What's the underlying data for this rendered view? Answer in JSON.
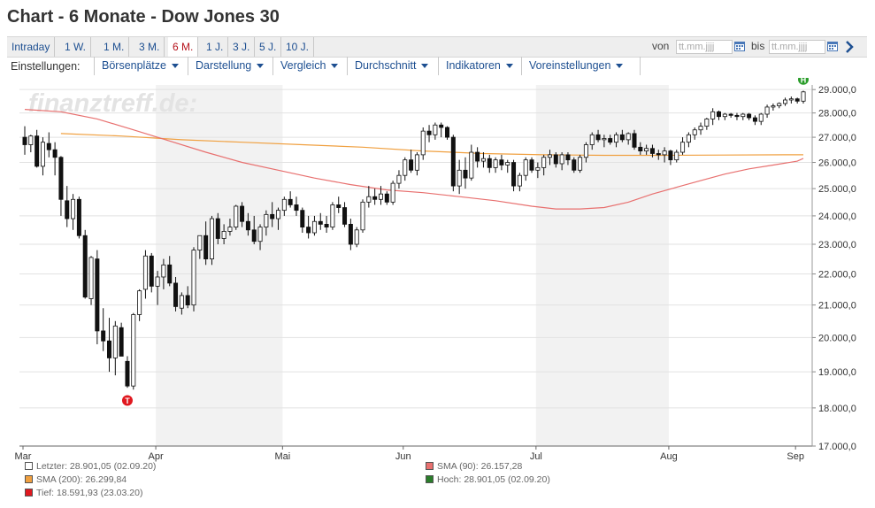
{
  "header": {
    "title": "Chart - 6 Monate - Dow Jones 30"
  },
  "range_tabs": [
    {
      "label": "Intraday",
      "active": false
    },
    {
      "label": "1 W.",
      "active": false
    },
    {
      "label": "1 M.",
      "active": false
    },
    {
      "label": "3 M.",
      "active": false
    },
    {
      "label": "6 M.",
      "active": true
    },
    {
      "label": "1 J.",
      "active": false
    },
    {
      "label": "3 J.",
      "active": false
    },
    {
      "label": "5 J.",
      "active": false
    },
    {
      "label": "10 J.",
      "active": false
    }
  ],
  "date_range": {
    "from_label": "von",
    "from_placeholder": "tt.mm.jjjj",
    "to_label": "bis",
    "to_placeholder": "tt.mm.jjjj"
  },
  "settings": {
    "label": "Einstellungen:",
    "menus": [
      "Börsenplätze",
      "Darstellung",
      "Vergleich",
      "Durchschnitt",
      "Indikatoren",
      "Voreinstellungen"
    ]
  },
  "watermark": "finanztreff.de:",
  "colors": {
    "sma90": "#e8706f",
    "sma200": "#f0a040",
    "up_candle": "#ffffff",
    "down_candle": "#111111",
    "low_marker": "#e0181f",
    "high_marker": "#2a9d2a",
    "shaded_month": "#f2f2f2"
  },
  "legend": [
    {
      "text": "Letzter: 28.901,05 (02.09.20)",
      "color": "#ffffff"
    },
    {
      "text": "SMA (90): 26.157,28",
      "color": "#e8706f"
    },
    {
      "text": "SMA (200): 26.299,84",
      "color": "#f0a040"
    },
    {
      "text": "Hoch: 28.901,05 (02.09.20)",
      "color": "#2a7d2a"
    },
    {
      "text": "Tief: 18.591,93 (23.03.20)",
      "color": "#e0181f"
    }
  ],
  "markers": {
    "low_label": "T",
    "high_label": "H"
  },
  "chart_data": {
    "type": "candlestick",
    "x_unit": "Handelstage (März–September 2020)",
    "month_labels": [
      {
        "label": "Mar",
        "day": 0
      },
      {
        "label": "Apr",
        "day": 22
      },
      {
        "label": "Mai",
        "day": 43
      },
      {
        "label": "Jun",
        "day": 63
      },
      {
        "label": "Jul",
        "day": 85
      },
      {
        "label": "Aug",
        "day": 107
      },
      {
        "label": "Sep",
        "day": 128
      }
    ],
    "shaded_months": [
      [
        22,
        43
      ],
      [
        85,
        107
      ]
    ],
    "yticks": [
      17000,
      18000,
      19000,
      20000,
      21000,
      22000,
      23000,
      24000,
      25000,
      26000,
      27000,
      28000,
      29000
    ],
    "ytick_labels": [
      "17.000,0",
      "18.000,0",
      "19.000,0",
      "20.000,0",
      "21.000,0",
      "22.000,0",
      "23.000,0",
      "24.000,0",
      "25.000,0",
      "26.000,0",
      "27.000,0",
      "28.000,0",
      "29.000,0"
    ],
    "ylim": [
      17000,
      29200
    ],
    "log_scale": true,
    "grid": true,
    "ohlc": [
      [
        27000,
        27450,
        26300,
        26700
      ],
      [
        26700,
        27100,
        26400,
        27050
      ],
      [
        27050,
        27300,
        25800,
        25850
      ],
      [
        25850,
        27000,
        25500,
        26800
      ],
      [
        26750,
        27200,
        26200,
        26500
      ],
      [
        26500,
        26800,
        25500,
        26200
      ],
      [
        26200,
        26250,
        24000,
        24600
      ],
      [
        24550,
        25100,
        23600,
        23900
      ],
      [
        23900,
        24800,
        23500,
        24600
      ],
      [
        24600,
        24700,
        23200,
        23300
      ],
      [
        23300,
        23500,
        21200,
        21250
      ],
      [
        21200,
        22600,
        21000,
        22550
      ],
      [
        22500,
        22800,
        19800,
        20200
      ],
      [
        20200,
        20900,
        19600,
        19900
      ],
      [
        19900,
        20600,
        19000,
        19400
      ],
      [
        19400,
        20500,
        18900,
        20350
      ],
      [
        20300,
        20450,
        19500,
        19450
      ],
      [
        19300,
        19450,
        18550,
        18600
      ],
      [
        18600,
        20750,
        18500,
        20700
      ],
      [
        20700,
        21500,
        20500,
        21450
      ],
      [
        21500,
        22800,
        21200,
        22600
      ],
      [
        22600,
        22700,
        21400,
        21600
      ],
      [
        21600,
        22100,
        21000,
        21900
      ],
      [
        21900,
        22500,
        21500,
        22300
      ],
      [
        22300,
        22600,
        21600,
        21700
      ],
      [
        21700,
        21900,
        20800,
        20950
      ],
      [
        20900,
        21400,
        20700,
        21300
      ],
      [
        21300,
        21600,
        20900,
        21000
      ],
      [
        21000,
        22900,
        20800,
        22800
      ],
      [
        22800,
        23300,
        22500,
        23300
      ],
      [
        23300,
        23800,
        22300,
        22500
      ],
      [
        22500,
        24000,
        22300,
        23900
      ],
      [
        23900,
        24100,
        23000,
        23200
      ],
      [
        23200,
        23700,
        23000,
        23450
      ],
      [
        23450,
        23900,
        23300,
        23600
      ],
      [
        23600,
        24400,
        23500,
        24350
      ],
      [
        24350,
        24500,
        23600,
        23800
      ],
      [
        23800,
        24100,
        23300,
        23500
      ],
      [
        23500,
        24000,
        23000,
        23100
      ],
      [
        23100,
        23700,
        22800,
        23600
      ],
      [
        23600,
        24200,
        23300,
        24050
      ],
      [
        24050,
        24500,
        23600,
        23900
      ],
      [
        23900,
        24300,
        23500,
        24200
      ],
      [
        24200,
        24700,
        24000,
        24600
      ],
      [
        24600,
        24900,
        24300,
        24400
      ],
      [
        24400,
        24700,
        24000,
        24200
      ],
      [
        24200,
        24300,
        23400,
        23600
      ],
      [
        23600,
        24000,
        23200,
        23400
      ],
      [
        23400,
        24000,
        23300,
        23800
      ],
      [
        23800,
        24100,
        23500,
        23700
      ],
      [
        23700,
        24000,
        23400,
        23600
      ],
      [
        23600,
        24500,
        23500,
        24400
      ],
      [
        24400,
        24700,
        24100,
        24300
      ],
      [
        24300,
        24500,
        23600,
        23700
      ],
      [
        23700,
        23900,
        22800,
        23000
      ],
      [
        23000,
        23600,
        22900,
        23500
      ],
      [
        23500,
        24600,
        23400,
        24500
      ],
      [
        24500,
        25100,
        24300,
        24700
      ],
      [
        24700,
        25000,
        24400,
        24600
      ],
      [
        24600,
        25100,
        24400,
        24800
      ],
      [
        24800,
        24900,
        24400,
        24500
      ],
      [
        24500,
        25300,
        24400,
        25200
      ],
      [
        25200,
        25700,
        25000,
        25500
      ],
      [
        25500,
        26200,
        25300,
        26100
      ],
      [
        26100,
        26500,
        25600,
        25700
      ],
      [
        25700,
        26400,
        25500,
        26300
      ],
      [
        26300,
        27400,
        26100,
        27250
      ],
      [
        27250,
        27500,
        26800,
        27100
      ],
      [
        27100,
        27600,
        26900,
        27500
      ],
      [
        27500,
        27600,
        27000,
        27400
      ],
      [
        27400,
        27450,
        26900,
        27000
      ],
      [
        27000,
        27100,
        24900,
        25100
      ],
      [
        25100,
        26100,
        24800,
        25700
      ],
      [
        25700,
        26200,
        25000,
        25400
      ],
      [
        25400,
        26700,
        25300,
        26400
      ],
      [
        26400,
        26600,
        25800,
        26050
      ],
      [
        26050,
        26400,
        25800,
        26150
      ],
      [
        26150,
        26300,
        25600,
        25800
      ],
      [
        25800,
        26200,
        25600,
        26100
      ],
      [
        26100,
        26300,
        25700,
        25900
      ],
      [
        25900,
        26100,
        25600,
        26000
      ],
      [
        26000,
        26100,
        24900,
        25100
      ],
      [
        25100,
        25600,
        24900,
        25500
      ],
      [
        25500,
        26200,
        25300,
        26100
      ],
      [
        26100,
        26200,
        25600,
        25700
      ],
      [
        25700,
        26000,
        25400,
        25800
      ],
      [
        25800,
        26300,
        25500,
        26200
      ],
      [
        26200,
        26500,
        25900,
        26300
      ],
      [
        26300,
        26400,
        25800,
        25950
      ],
      [
        25950,
        26400,
        25700,
        26300
      ],
      [
        26300,
        26400,
        25900,
        26100
      ],
      [
        26100,
        26200,
        25600,
        25700
      ],
      [
        25700,
        26300,
        25600,
        26200
      ],
      [
        26200,
        26800,
        26000,
        26700
      ],
      [
        26700,
        27200,
        26500,
        27100
      ],
      [
        27100,
        27300,
        26800,
        26900
      ],
      [
        26900,
        27100,
        26600,
        26950
      ],
      [
        26950,
        27100,
        26700,
        26800
      ],
      [
        26800,
        27200,
        26600,
        27100
      ],
      [
        27100,
        27300,
        26800,
        26900
      ],
      [
        26900,
        27200,
        26700,
        27150
      ],
      [
        27150,
        27300,
        26500,
        26600
      ],
      [
        26600,
        26800,
        26300,
        26450
      ],
      [
        26450,
        26700,
        26300,
        26550
      ],
      [
        26550,
        26700,
        26200,
        26350
      ],
      [
        26350,
        26500,
        26100,
        26300
      ],
      [
        26300,
        26600,
        26000,
        26450
      ],
      [
        26450,
        26500,
        25900,
        26100
      ],
      [
        26100,
        26500,
        26000,
        26400
      ],
      [
        26400,
        27000,
        26300,
        26800
      ],
      [
        26800,
        27200,
        26600,
        27100
      ],
      [
        27100,
        27400,
        26900,
        27300
      ],
      [
        27300,
        27600,
        27100,
        27450
      ],
      [
        27450,
        27800,
        27300,
        27750
      ],
      [
        27750,
        28200,
        27500,
        28050
      ],
      [
        28050,
        28100,
        27700,
        27850
      ],
      [
        27850,
        28000,
        27700,
        27950
      ],
      [
        27950,
        28000,
        27800,
        27900
      ],
      [
        27900,
        28000,
        27700,
        27850
      ],
      [
        27850,
        28000,
        27700,
        27950
      ],
      [
        27950,
        28000,
        27700,
        27800
      ],
      [
        27800,
        27900,
        27500,
        27650
      ],
      [
        27650,
        28000,
        27500,
        27950
      ],
      [
        27950,
        28350,
        27800,
        28250
      ],
      [
        28250,
        28400,
        28100,
        28300
      ],
      [
        28300,
        28450,
        28200,
        28400
      ],
      [
        28400,
        28650,
        28300,
        28550
      ],
      [
        28550,
        28700,
        28400,
        28600
      ],
      [
        28600,
        28650,
        28400,
        28500
      ],
      [
        28500,
        28950,
        28400,
        28900
      ]
    ],
    "sma90": [
      [
        0,
        28150
      ],
      [
        6,
        28050
      ],
      [
        12,
        27750
      ],
      [
        18,
        27300
      ],
      [
        24,
        26850
      ],
      [
        30,
        26400
      ],
      [
        36,
        26000
      ],
      [
        42,
        25700
      ],
      [
        48,
        25400
      ],
      [
        54,
        25150
      ],
      [
        60,
        24950
      ],
      [
        66,
        24850
      ],
      [
        72,
        24700
      ],
      [
        78,
        24550
      ],
      [
        84,
        24350
      ],
      [
        88,
        24250
      ],
      [
        92,
        24250
      ],
      [
        96,
        24300
      ],
      [
        100,
        24500
      ],
      [
        104,
        24800
      ],
      [
        108,
        25050
      ],
      [
        112,
        25300
      ],
      [
        116,
        25550
      ],
      [
        120,
        25750
      ],
      [
        124,
        25900
      ],
      [
        128,
        26050
      ],
      [
        129,
        26157
      ]
    ],
    "sma200": [
      [
        6,
        27150
      ],
      [
        16,
        27050
      ],
      [
        26,
        26900
      ],
      [
        36,
        26800
      ],
      [
        46,
        26700
      ],
      [
        56,
        26600
      ],
      [
        66,
        26450
      ],
      [
        76,
        26350
      ],
      [
        86,
        26300
      ],
      [
        96,
        26280
      ],
      [
        106,
        26280
      ],
      [
        116,
        26290
      ],
      [
        126,
        26300
      ],
      [
        129,
        26300
      ]
    ],
    "low_marker": {
      "day": 17,
      "value": 18591.93
    },
    "high_marker": {
      "day": 129,
      "value": 28901.05
    }
  }
}
